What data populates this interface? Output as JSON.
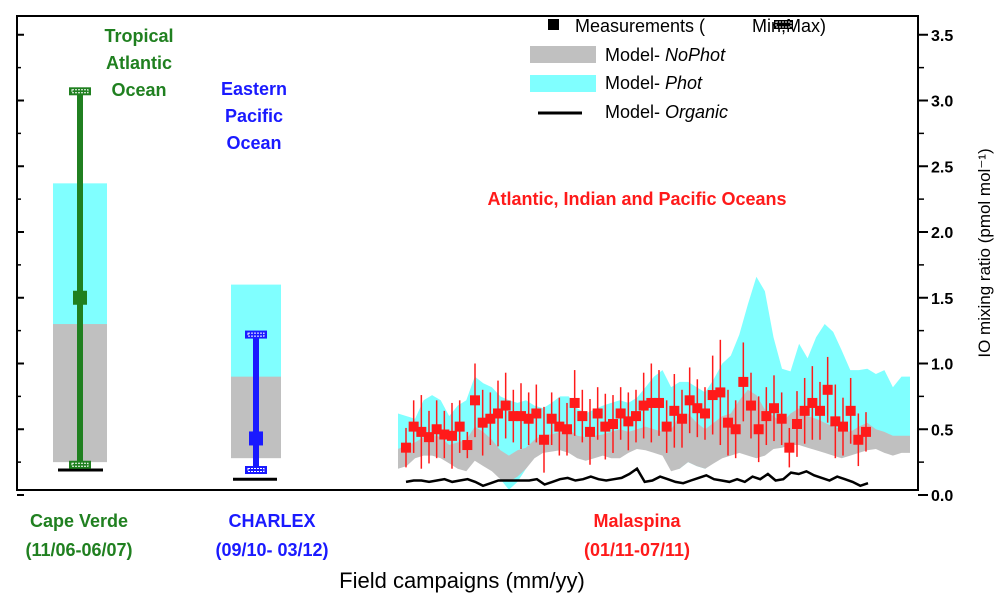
{
  "chart_data": {
    "type": "bar",
    "xlabel": "Field campaigns (mm/yy)",
    "ylabel": "IO mixing ratio (pmol mol⁻¹)",
    "ylim": [
      -0.05,
      3.6
    ],
    "yticks": [
      0.0,
      0.5,
      1.0,
      1.5,
      2.0,
      2.5,
      3.0,
      3.5
    ],
    "ytick_labels": [
      "0.0",
      "0.5",
      "1.0",
      "1.5",
      "2.0",
      "2.5",
      "3.0",
      "3.5"
    ],
    "y_axis_side": "right",
    "colors": {
      "capeverde": "#208020",
      "charlex": "#1a1aff",
      "malaspina": "#ff1a1a",
      "nophot": "#c0c0c0",
      "phot": "#80ffff",
      "organic": "#000000"
    },
    "legend": {
      "placement": "top-right",
      "entries": [
        {
          "prefix": "Measurements ( ",
          "suffix": "Min,Max)",
          "italic": ""
        },
        {
          "prefix": "Model- ",
          "suffix": "",
          "italic": "NoPhot"
        },
        {
          "prefix": "Model- ",
          "suffix": "",
          "italic": "Phot"
        },
        {
          "prefix": "Model- ",
          "suffix": "",
          "italic": "Organic"
        }
      ]
    },
    "campaigns": [
      {
        "name": "Cape Verde",
        "period": "(11/06-06/07)",
        "region": [
          "Tropical",
          "Atlantic",
          "Ocean"
        ],
        "measurement": 1.5,
        "min": 0.23,
        "max": 3.07,
        "nophot": [
          0.25,
          1.3
        ],
        "phot": [
          0.8,
          2.37
        ],
        "organic": 0.19
      },
      {
        "name": "CHARLEX",
        "period": "(09/10- 03/12)",
        "region": [
          "Eastern",
          "Pacific",
          "Ocean"
        ],
        "measurement": 0.43,
        "min": 0.19,
        "max": 1.22,
        "nophot": [
          0.28,
          0.9
        ],
        "phot": [
          0.43,
          1.6
        ],
        "organic": 0.12
      }
    ],
    "malaspina": {
      "name": "Malaspina",
      "period": "(01/11-07/11)",
      "region": "Atlantic, Indian and Pacific Oceans",
      "points": [
        {
          "v": 0.36,
          "e": 0.15
        },
        {
          "v": 0.52,
          "e": 0.2
        },
        {
          "v": 0.48,
          "e": 0.28
        },
        {
          "v": 0.44,
          "e": 0.2
        },
        {
          "v": 0.5,
          "e": 0.22
        },
        {
          "v": 0.46,
          "e": 0.18
        },
        {
          "v": 0.45,
          "e": 0.25
        },
        {
          "v": 0.52,
          "e": 0.2
        },
        {
          "v": 0.38,
          "e": 0.1
        },
        {
          "v": 0.72,
          "e": 0.28
        },
        {
          "v": 0.55,
          "e": 0.25
        },
        {
          "v": 0.58,
          "e": 0.2
        },
        {
          "v": 0.62,
          "e": 0.25
        },
        {
          "v": 0.68,
          "e": 0.25
        },
        {
          "v": 0.6,
          "e": 0.2
        },
        {
          "v": 0.6,
          "e": 0.25
        },
        {
          "v": 0.58,
          "e": 0.2
        },
        {
          "v": 0.62,
          "e": 0.22
        },
        {
          "v": 0.42,
          "e": 0.25
        },
        {
          "v": 0.58,
          "e": 0.2
        },
        {
          "v": 0.52,
          "e": 0.22
        },
        {
          "v": 0.5,
          "e": 0.2
        },
        {
          "v": 0.7,
          "e": 0.25
        },
        {
          "v": 0.6,
          "e": 0.2
        },
        {
          "v": 0.48,
          "e": 0.25
        },
        {
          "v": 0.62,
          "e": 0.2
        },
        {
          "v": 0.52,
          "e": 0.25
        },
        {
          "v": 0.54,
          "e": 0.22
        },
        {
          "v": 0.62,
          "e": 0.2
        },
        {
          "v": 0.56,
          "e": 0.22
        },
        {
          "v": 0.6,
          "e": 0.2
        },
        {
          "v": 0.68,
          "e": 0.25
        },
        {
          "v": 0.7,
          "e": 0.3
        },
        {
          "v": 0.7,
          "e": 0.25
        },
        {
          "v": 0.52,
          "e": 0.2
        },
        {
          "v": 0.64,
          "e": 0.28
        },
        {
          "v": 0.58,
          "e": 0.22
        },
        {
          "v": 0.72,
          "e": 0.25
        },
        {
          "v": 0.66,
          "e": 0.22
        },
        {
          "v": 0.62,
          "e": 0.2
        },
        {
          "v": 0.76,
          "e": 0.3
        },
        {
          "v": 0.78,
          "e": 0.4
        },
        {
          "v": 0.55,
          "e": 0.25
        },
        {
          "v": 0.5,
          "e": 0.22
        },
        {
          "v": 0.86,
          "e": 0.3
        },
        {
          "v": 0.68,
          "e": 0.25
        },
        {
          "v": 0.5,
          "e": 0.25
        },
        {
          "v": 0.6,
          "e": 0.22
        },
        {
          "v": 0.66,
          "e": 0.25
        },
        {
          "v": 0.58,
          "e": 0.2
        },
        {
          "v": 0.36,
          "e": 0.15
        },
        {
          "v": 0.54,
          "e": 0.25
        },
        {
          "v": 0.64,
          "e": 0.25
        },
        {
          "v": 0.7,
          "e": 0.28
        },
        {
          "v": 0.64,
          "e": 0.22
        },
        {
          "v": 0.8,
          "e": 0.25
        },
        {
          "v": 0.56,
          "e": 0.28
        },
        {
          "v": 0.52,
          "e": 0.22
        },
        {
          "v": 0.64,
          "e": 0.25
        },
        {
          "v": 0.42,
          "e": 0.2
        },
        {
          "v": 0.48,
          "e": 0.15
        }
      ],
      "phot_upper": [
        0.62,
        0.6,
        0.58,
        0.72,
        0.76,
        0.72,
        0.6,
        0.68,
        0.72,
        0.9,
        0.85,
        0.82,
        0.75,
        0.72,
        0.7,
        0.72,
        0.68,
        0.66,
        0.7,
        0.75,
        0.75,
        0.66,
        0.62,
        0.65,
        0.68,
        0.7,
        0.72,
        0.7,
        0.74,
        0.82,
        0.9,
        0.95,
        0.82,
        0.86,
        0.86,
        0.82,
        0.78,
        0.88,
        1.0,
        1.06,
        1.22,
        1.45,
        1.66,
        1.55,
        1.2,
        0.96,
        0.94,
        1.15,
        1.04,
        1.2,
        1.3,
        1.24,
        1.1,
        0.95,
        0.95,
        0.96,
        0.92,
        0.95,
        0.82,
        0.9,
        0.9
      ],
      "phot_lower": [
        0.2,
        0.25,
        0.3,
        0.32,
        0.32,
        0.3,
        0.26,
        0.22,
        0.2,
        0.3,
        0.25,
        0.2,
        0.12,
        0.04,
        0.1,
        0.2,
        0.3,
        0.35,
        0.36,
        0.36,
        0.35,
        0.3,
        0.28,
        0.3,
        0.32,
        0.3,
        0.3,
        0.34,
        0.38,
        0.38,
        0.35,
        0.32,
        0.2,
        0.2,
        0.25,
        0.22,
        0.2,
        0.25,
        0.3,
        0.34,
        0.4,
        0.36,
        0.3,
        0.32,
        0.38,
        0.4,
        0.42,
        0.42,
        0.4,
        0.38,
        0.34,
        0.32,
        0.3,
        0.32,
        0.35,
        0.36,
        0.38,
        0.35,
        0.32,
        0.4,
        0.4
      ],
      "nophot_upper": [
        0.35,
        0.38,
        0.4,
        0.44,
        0.46,
        0.44,
        0.38,
        0.4,
        0.42,
        0.52,
        0.48,
        0.42,
        0.34,
        0.3,
        0.34,
        0.36,
        0.42,
        0.46,
        0.46,
        0.48,
        0.5,
        0.45,
        0.44,
        0.45,
        0.46,
        0.48,
        0.5,
        0.48,
        0.5,
        0.52,
        0.5,
        0.48,
        0.5,
        0.6,
        0.62,
        0.55,
        0.5,
        0.55,
        0.6,
        0.62,
        0.72,
        0.8,
        0.76,
        0.65,
        0.6,
        0.55,
        0.62,
        0.66,
        0.6,
        0.58,
        0.55,
        0.52,
        0.5,
        0.48,
        0.52,
        0.55,
        0.5,
        0.48,
        0.45,
        0.45,
        0.45
      ],
      "nophot_lower": [
        0.2,
        0.22,
        0.28,
        0.3,
        0.3,
        0.28,
        0.24,
        0.2,
        0.18,
        0.26,
        0.22,
        0.18,
        0.12,
        0.1,
        0.14,
        0.2,
        0.28,
        0.32,
        0.33,
        0.34,
        0.32,
        0.28,
        0.26,
        0.28,
        0.3,
        0.28,
        0.28,
        0.32,
        0.35,
        0.34,
        0.32,
        0.3,
        0.18,
        0.2,
        0.25,
        0.22,
        0.2,
        0.24,
        0.28,
        0.3,
        0.32,
        0.3,
        0.28,
        0.3,
        0.35,
        0.36,
        0.38,
        0.38,
        0.36,
        0.34,
        0.32,
        0.3,
        0.28,
        0.3,
        0.32,
        0.34,
        0.35,
        0.32,
        0.3,
        0.32,
        0.32
      ],
      "organic": [
        0.1,
        0.11,
        0.11,
        0.1,
        0.11,
        0.12,
        0.1,
        0.11,
        0.12,
        0.1,
        0.07,
        0.09,
        0.11,
        0.11,
        0.11,
        0.11,
        0.11,
        0.12,
        0.08,
        0.1,
        0.12,
        0.13,
        0.11,
        0.12,
        0.14,
        0.12,
        0.11,
        0.12,
        0.13,
        0.16,
        0.2,
        0.1,
        0.11,
        0.14,
        0.12,
        0.1,
        0.09,
        0.11,
        0.13,
        0.15,
        0.12,
        0.11,
        0.1,
        0.12,
        0.1,
        0.14,
        0.12,
        0.16,
        0.11,
        0.12,
        0.17,
        0.16,
        0.18,
        0.15,
        0.13,
        0.11,
        0.14,
        0.12,
        0.1,
        0.07,
        0.09
      ]
    }
  }
}
